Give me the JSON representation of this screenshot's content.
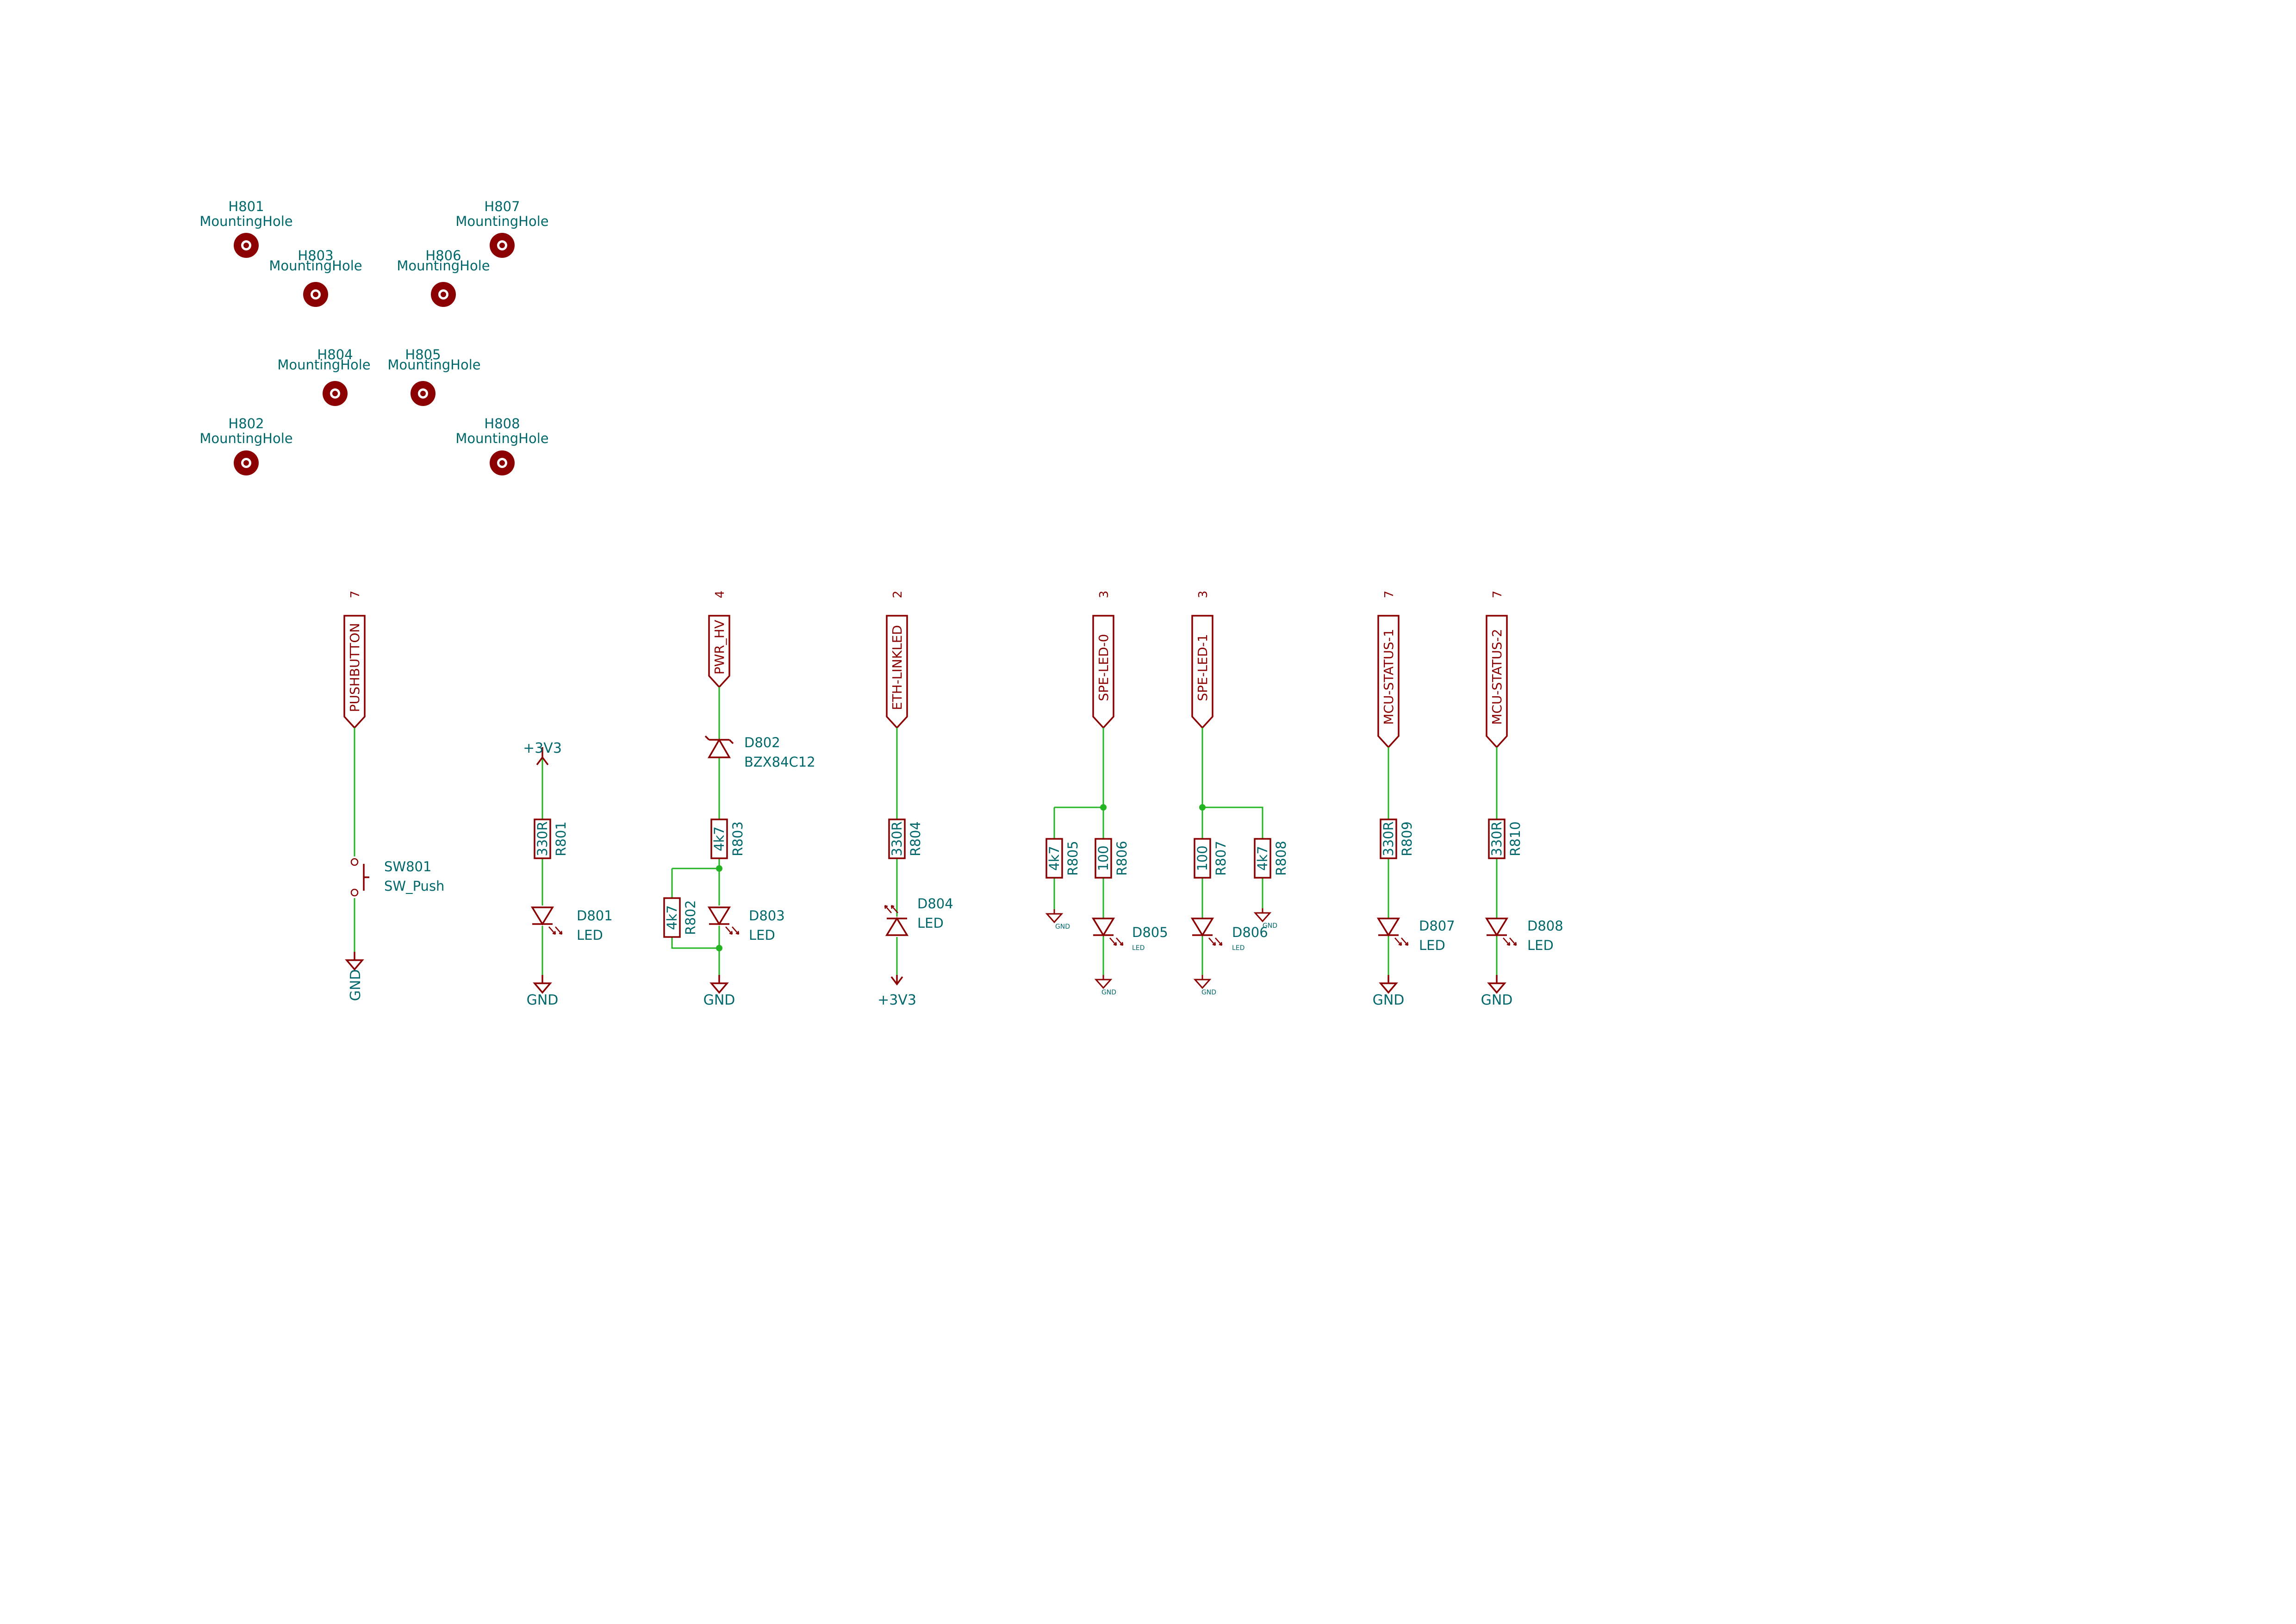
{
  "mounting_holes": [
    {
      "ref": "H801",
      "value": "MountingHole"
    },
    {
      "ref": "H802",
      "value": "MountingHole"
    },
    {
      "ref": "H803",
      "value": "MountingHole"
    },
    {
      "ref": "H804",
      "value": "MountingHole"
    },
    {
      "ref": "H805",
      "value": "MountingHole"
    },
    {
      "ref": "H806",
      "value": "MountingHole"
    },
    {
      "ref": "H807",
      "value": "MountingHole"
    },
    {
      "ref": "H808",
      "value": "MountingHole"
    }
  ],
  "net_labels": [
    {
      "name": "PUSHBUTTON",
      "sheet_ref": "7"
    },
    {
      "name": "PWR_HV",
      "sheet_ref": "4"
    },
    {
      "name": "ETH-LINKLED",
      "sheet_ref": "2"
    },
    {
      "name": "SPE-LED-0",
      "sheet_ref": "3"
    },
    {
      "name": "SPE-LED-1",
      "sheet_ref": "3"
    },
    {
      "name": "MCU-STATUS-1",
      "sheet_ref": "7"
    },
    {
      "name": "MCU-STATUS-2",
      "sheet_ref": "7"
    }
  ],
  "power": {
    "gnd": "GND",
    "v33": "+3V3"
  },
  "components": {
    "sw801": {
      "ref": "SW801",
      "value": "SW_Push"
    },
    "r801": {
      "ref": "R801",
      "value": "330R"
    },
    "d801": {
      "ref": "D801",
      "value": "LED"
    },
    "d802": {
      "ref": "D802",
      "value": "BZX84C12"
    },
    "r803": {
      "ref": "R803",
      "value": "4k7"
    },
    "r802": {
      "ref": "R802",
      "value": "4k7"
    },
    "d803": {
      "ref": "D803",
      "value": "LED"
    },
    "r804": {
      "ref": "R804",
      "value": "330R"
    },
    "d804": {
      "ref": "D804",
      "value": "LED"
    },
    "r805": {
      "ref": "R805",
      "value": "4k7"
    },
    "r806": {
      "ref": "R806",
      "value": "100"
    },
    "d805": {
      "ref": "D805",
      "value": "LED"
    },
    "r807": {
      "ref": "R807",
      "value": "100"
    },
    "r808": {
      "ref": "R808",
      "value": "4k7"
    },
    "d806": {
      "ref": "D806",
      "value": "LED"
    },
    "r809": {
      "ref": "R809",
      "value": "330R"
    },
    "d807": {
      "ref": "D807",
      "value": "LED"
    },
    "r810": {
      "ref": "R810",
      "value": "330R"
    },
    "d808": {
      "ref": "D808",
      "value": "LED"
    }
  },
  "colors": {
    "symbol": "#8b0000",
    "text": "#00686b",
    "wire": "#23b323",
    "junction": "#23b323",
    "background": "#ffffff"
  }
}
